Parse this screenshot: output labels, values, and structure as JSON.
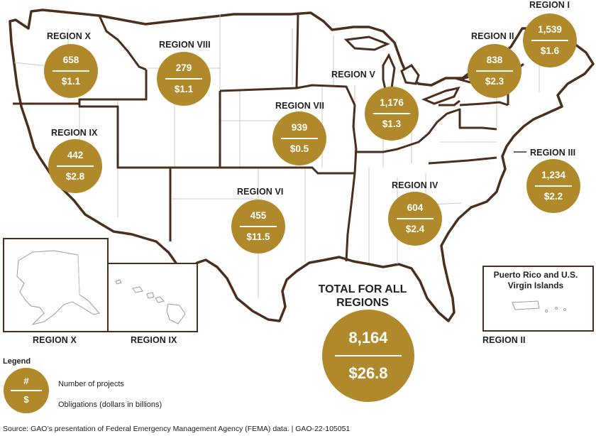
{
  "regions": [
    {
      "id": "x",
      "label": "REGION X",
      "projects": "658",
      "obligations": "$1.1"
    },
    {
      "id": "viii",
      "label": "REGION VIII",
      "projects": "279",
      "obligations": "$1.1"
    },
    {
      "id": "ix",
      "label": "REGION IX",
      "projects": "442",
      "obligations": "$2.8"
    },
    {
      "id": "vii",
      "label": "REGION VII",
      "projects": "939",
      "obligations": "$0.5"
    },
    {
      "id": "vi",
      "label": "REGION VI",
      "projects": "455",
      "obligations": "$11.5"
    },
    {
      "id": "v",
      "label": "REGION V",
      "projects": "1,176",
      "obligations": "$1.3"
    },
    {
      "id": "iv",
      "label": "REGION IV",
      "projects": "604",
      "obligations": "$2.4"
    },
    {
      "id": "ii",
      "label": "REGION II",
      "projects": "838",
      "obligations": "$2.3"
    },
    {
      "id": "i",
      "label": "REGION I",
      "projects": "1,539",
      "obligations": "$1.6"
    },
    {
      "id": "iii",
      "label": "REGION III",
      "projects": "1,234",
      "obligations": "$2.2"
    }
  ],
  "total": {
    "title": "TOTAL FOR ALL REGIONS",
    "projects": "8,164",
    "obligations": "$26.8"
  },
  "insets": {
    "alaska_label": "REGION X",
    "hawaii_label": "REGION IX",
    "pr_title": "Puerto Rico and U.S. Virgin Islands",
    "pr_label": "REGION II"
  },
  "legend": {
    "title": "Legend",
    "symbol_top": "#",
    "symbol_bottom": "$",
    "projects_text": "Number of projects",
    "obligations_text": "Obligations (dollars in billions)"
  },
  "source": "Source: GAO’s presentation of Federal Emergency Management Agency (FEMA) data.  |  GAO-22-105051",
  "colors": {
    "bubble": "#b08a2a",
    "border": "#4a2f1c",
    "state_line": "#c8c8c8"
  }
}
